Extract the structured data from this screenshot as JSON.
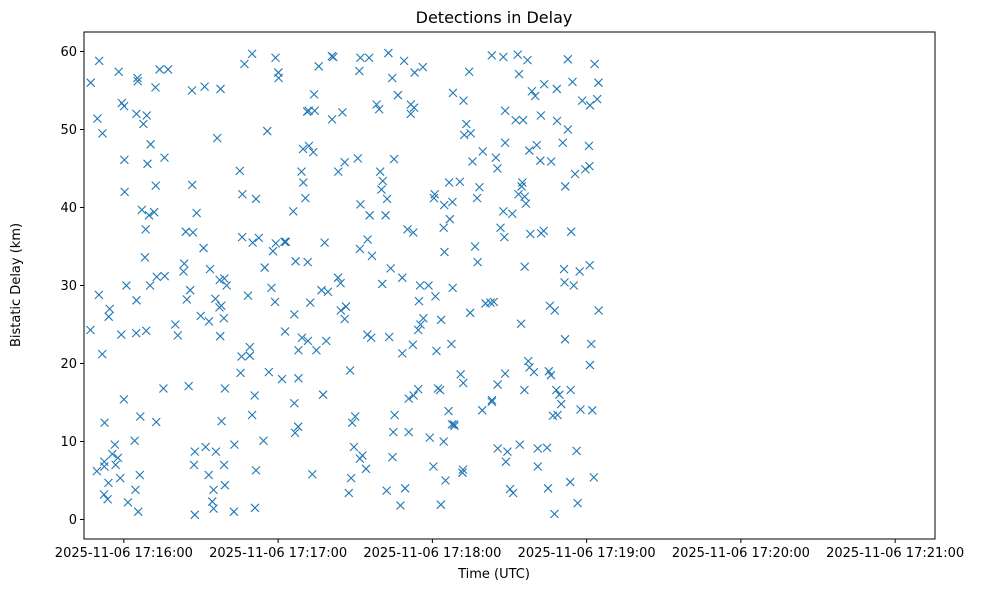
{
  "chart_data": {
    "type": "scatter",
    "title": "Detections in Delay",
    "xlabel": "Time (UTC)",
    "ylabel": "Bistatic Delay (km)",
    "marker": "x",
    "color": "#1f77b4",
    "xlim_seconds": [
      -15.5,
      315.5
    ],
    "ylim": [
      -2.5,
      62.5
    ],
    "xticks": [
      {
        "t": 0,
        "label": "2025-11-06 17:16:00"
      },
      {
        "t": 60,
        "label": "2025-11-06 17:17:00"
      },
      {
        "t": 120,
        "label": "2025-11-06 17:18:00"
      },
      {
        "t": 180,
        "label": "2025-11-06 17:19:00"
      },
      {
        "t": 240,
        "label": "2025-11-06 17:20:00"
      },
      {
        "t": 300,
        "label": "2025-11-06 17:21:00"
      }
    ],
    "yticks": [
      0,
      10,
      20,
      30,
      40,
      50,
      60
    ],
    "x_unit": "seconds after 2025-11-06 17:16:00 UTC",
    "points": [
      [
        -12.9,
        56.0
      ],
      [
        -13.0,
        24.3
      ],
      [
        -10.5,
        6.2
      ],
      [
        -10.3,
        51.4
      ],
      [
        -9.6,
        58.8
      ],
      [
        -9.7,
        28.8
      ],
      [
        -8.4,
        21.2
      ],
      [
        -8.3,
        49.5
      ],
      [
        -7.7,
        3.2
      ],
      [
        -7.6,
        6.8
      ],
      [
        -7.6,
        7.4
      ],
      [
        -7.5,
        12.4
      ],
      [
        -6.3,
        2.6
      ],
      [
        -6.0,
        4.7
      ],
      [
        -5.9,
        26.0
      ],
      [
        -5.5,
        27.0
      ],
      [
        -4.5,
        8.4
      ],
      [
        -3.5,
        9.6
      ],
      [
        -3.2,
        7.0
      ],
      [
        -2.3,
        7.9
      ],
      [
        -2.0,
        57.4
      ],
      [
        -1.4,
        5.3
      ],
      [
        -1.0,
        23.7
      ],
      [
        -0.8,
        53.4
      ],
      [
        0.2,
        46.1
      ],
      [
        0.3,
        42.0
      ],
      [
        0.1,
        53.0
      ],
      [
        0.0,
        15.4
      ],
      [
        1.0,
        30.0
      ],
      [
        1.6,
        2.2
      ],
      [
        4.2,
        10.1
      ],
      [
        4.5,
        3.8
      ],
      [
        4.9,
        52.0
      ],
      [
        4.8,
        23.9
      ],
      [
        4.9,
        28.1
      ],
      [
        5.3,
        56.6
      ],
      [
        5.4,
        56.2
      ],
      [
        5.6,
        1.0
      ],
      [
        6.2,
        5.7
      ],
      [
        6.4,
        13.2
      ],
      [
        7.0,
        39.7
      ],
      [
        7.6,
        50.7
      ],
      [
        8.2,
        33.6
      ],
      [
        8.5,
        37.2
      ],
      [
        8.9,
        51.8
      ],
      [
        8.7,
        24.2
      ],
      [
        9.2,
        45.6
      ],
      [
        9.8,
        39.0
      ],
      [
        10.4,
        48.1
      ],
      [
        10.2,
        30.0
      ],
      [
        11.8,
        39.4
      ],
      [
        12.3,
        55.4
      ],
      [
        12.4,
        42.8
      ],
      [
        12.6,
        12.5
      ],
      [
        12.8,
        31.1
      ],
      [
        13.9,
        57.7
      ],
      [
        15.4,
        16.8
      ],
      [
        15.8,
        46.4
      ],
      [
        15.9,
        31.2
      ],
      [
        17.2,
        57.7
      ],
      [
        20.0,
        25.0
      ],
      [
        21.0,
        23.6
      ],
      [
        23.2,
        31.8
      ],
      [
        23.5,
        32.8
      ],
      [
        24.1,
        36.9
      ],
      [
        24.5,
        28.2
      ],
      [
        25.2,
        17.1
      ],
      [
        25.8,
        29.4
      ],
      [
        26.5,
        55.0
      ],
      [
        26.6,
        42.9
      ],
      [
        26.9,
        36.8
      ],
      [
        27.6,
        8.7
      ],
      [
        27.3,
        7.0
      ],
      [
        27.6,
        0.6
      ],
      [
        28.3,
        39.3
      ],
      [
        29.9,
        26.1
      ],
      [
        31.0,
        34.8
      ],
      [
        31.4,
        55.5
      ],
      [
        31.8,
        9.3
      ],
      [
        33.1,
        25.4
      ],
      [
        33.0,
        5.7
      ],
      [
        33.5,
        32.1
      ],
      [
        34.4,
        2.3
      ],
      [
        34.9,
        3.8
      ],
      [
        34.9,
        1.4
      ],
      [
        35.6,
        28.3
      ],
      [
        35.8,
        8.7
      ],
      [
        36.3,
        48.9
      ],
      [
        37.2,
        27.2
      ],
      [
        37.3,
        30.7
      ],
      [
        37.5,
        23.5
      ],
      [
        37.6,
        55.2
      ],
      [
        37.9,
        27.4
      ],
      [
        38.0,
        12.6
      ],
      [
        39.0,
        7.0
      ],
      [
        39.3,
        4.4
      ],
      [
        39.3,
        16.8
      ],
      [
        38.9,
        25.8
      ],
      [
        39.1,
        30.9
      ],
      [
        40.0,
        30.0
      ],
      [
        42.8,
        1.0
      ],
      [
        43.0,
        9.6
      ],
      [
        45.1,
        44.7
      ],
      [
        45.4,
        18.8
      ],
      [
        45.8,
        20.9
      ],
      [
        46.0,
        36.2
      ],
      [
        46.1,
        41.7
      ],
      [
        46.9,
        58.4
      ],
      [
        48.3,
        28.7
      ],
      [
        49.0,
        21.0
      ],
      [
        49.0,
        22.1
      ],
      [
        49.9,
        59.7
      ],
      [
        49.9,
        13.4
      ],
      [
        50.1,
        35.5
      ],
      [
        50.9,
        15.9
      ],
      [
        51.0,
        1.5
      ],
      [
        51.4,
        6.3
      ],
      [
        51.4,
        41.1
      ],
      [
        52.5,
        36.1
      ],
      [
        54.3,
        10.1
      ],
      [
        54.8,
        32.3
      ],
      [
        55.8,
        49.8
      ],
      [
        56.4,
        18.9
      ],
      [
        57.4,
        29.7
      ],
      [
        58.0,
        34.4
      ],
      [
        58.8,
        27.9
      ],
      [
        59.1,
        35.4
      ],
      [
        59.0,
        59.2
      ],
      [
        60.1,
        57.3
      ],
      [
        60.2,
        56.6
      ],
      [
        61.5,
        18.0
      ],
      [
        62.5,
        35.6
      ],
      [
        63.0,
        35.6
      ],
      [
        62.7,
        24.1
      ],
      [
        65.9,
        39.5
      ],
      [
        66.3,
        26.3
      ],
      [
        66.3,
        14.9
      ],
      [
        66.6,
        11.1
      ],
      [
        66.8,
        33.1
      ],
      [
        67.8,
        11.9
      ],
      [
        67.9,
        18.1
      ],
      [
        67.9,
        21.7
      ],
      [
        69.1,
        44.6
      ],
      [
        69.3,
        23.3
      ],
      [
        69.7,
        47.5
      ],
      [
        69.8,
        43.2
      ],
      [
        70.6,
        41.2
      ],
      [
        71.3,
        52.3
      ],
      [
        71.5,
        33.0
      ],
      [
        71.6,
        22.9
      ],
      [
        71.9,
        52.4
      ],
      [
        72.0,
        47.9
      ],
      [
        72.5,
        27.8
      ],
      [
        73.7,
        47.1
      ],
      [
        73.3,
        5.8
      ],
      [
        74.2,
        52.4
      ],
      [
        74.0,
        54.5
      ],
      [
        74.9,
        21.7
      ],
      [
        75.8,
        58.1
      ],
      [
        76.9,
        29.4
      ],
      [
        77.5,
        16.0
      ],
      [
        78.1,
        35.5
      ],
      [
        78.7,
        22.9
      ],
      [
        79.4,
        29.2
      ],
      [
        81.0,
        51.3
      ],
      [
        80.9,
        59.4
      ],
      [
        81.5,
        59.3
      ],
      [
        83.3,
        31.0
      ],
      [
        83.4,
        44.6
      ],
      [
        84.3,
        30.3
      ],
      [
        84.4,
        26.8
      ],
      [
        85.0,
        52.2
      ],
      [
        85.9,
        45.8
      ],
      [
        85.9,
        25.7
      ],
      [
        86.4,
        27.3
      ],
      [
        87.5,
        3.4
      ],
      [
        88.0,
        19.1
      ],
      [
        88.4,
        5.3
      ],
      [
        88.8,
        12.4
      ],
      [
        89.5,
        9.3
      ],
      [
        90.0,
        13.2
      ],
      [
        91.0,
        46.3
      ],
      [
        91.6,
        57.5
      ],
      [
        92.0,
        59.2
      ],
      [
        91.8,
        7.8
      ],
      [
        92.0,
        40.4
      ],
      [
        91.8,
        34.7
      ],
      [
        92.8,
        8.2
      ],
      [
        94.2,
        6.5
      ],
      [
        94.7,
        23.7
      ],
      [
        94.8,
        35.9
      ],
      [
        95.4,
        59.2
      ],
      [
        95.6,
        39.0
      ],
      [
        96.2,
        23.3
      ],
      [
        96.5,
        33.8
      ],
      [
        98.3,
        53.2
      ],
      [
        99.3,
        52.6
      ],
      [
        99.7,
        44.6
      ],
      [
        100.2,
        42.3
      ],
      [
        100.5,
        30.2
      ],
      [
        100.7,
        43.4
      ],
      [
        101.8,
        39.0
      ],
      [
        102.4,
        41.1
      ],
      [
        102.2,
        3.7
      ],
      [
        102.9,
        59.8
      ],
      [
        103.2,
        23.4
      ],
      [
        103.8,
        32.2
      ],
      [
        104.4,
        56.6
      ],
      [
        104.5,
        8.0
      ],
      [
        104.8,
        11.2
      ],
      [
        105.3,
        13.4
      ],
      [
        105.1,
        46.2
      ],
      [
        106.6,
        54.4
      ],
      [
        107.6,
        1.8
      ],
      [
        108.3,
        31.0
      ],
      [
        108.3,
        21.3
      ],
      [
        109.0,
        58.8
      ],
      [
        109.4,
        4.0
      ],
      [
        110.3,
        37.2
      ],
      [
        110.8,
        11.2
      ],
      [
        110.8,
        15.5
      ],
      [
        111.6,
        52.0
      ],
      [
        111.6,
        53.2
      ],
      [
        112.6,
        36.8
      ],
      [
        112.4,
        22.4
      ],
      [
        112.7,
        15.9
      ],
      [
        112.9,
        52.8
      ],
      [
        113.1,
        57.3
      ],
      [
        114.5,
        16.7
      ],
      [
        114.5,
        24.3
      ],
      [
        114.8,
        28.0
      ],
      [
        115.2,
        30.0
      ],
      [
        115.4,
        25.0
      ],
      [
        116.3,
        58.0
      ],
      [
        116.5,
        25.8
      ],
      [
        118.5,
        30.0
      ],
      [
        119.0,
        10.5
      ],
      [
        120.4,
        6.8
      ],
      [
        120.6,
        41.2
      ],
      [
        120.9,
        41.7
      ],
      [
        121.2,
        28.6
      ],
      [
        121.6,
        21.6
      ],
      [
        122.2,
        16.8
      ],
      [
        123.0,
        16.6
      ],
      [
        123.3,
        1.9
      ],
      [
        123.4,
        25.6
      ],
      [
        124.4,
        37.4
      ],
      [
        124.4,
        10.0
      ],
      [
        124.6,
        40.3
      ],
      [
        124.7,
        34.3
      ],
      [
        125.1,
        5.0
      ],
      [
        126.3,
        13.9
      ],
      [
        126.5,
        43.2
      ],
      [
        126.8,
        38.5
      ],
      [
        127.4,
        22.5
      ],
      [
        127.6,
        12.2
      ],
      [
        127.8,
        40.7
      ],
      [
        127.9,
        29.7
      ],
      [
        128.0,
        54.7
      ],
      [
        128.4,
        12.2
      ],
      [
        128.6,
        12.0
      ],
      [
        130.7,
        43.3
      ],
      [
        131.0,
        18.6
      ],
      [
        131.9,
        6.4
      ],
      [
        132.0,
        17.5
      ],
      [
        131.7,
        6.0
      ],
      [
        132.1,
        53.7
      ],
      [
        132.4,
        49.3
      ],
      [
        133.2,
        50.7
      ],
      [
        134.3,
        57.4
      ],
      [
        134.7,
        26.5
      ],
      [
        134.9,
        49.5
      ],
      [
        135.6,
        45.9
      ],
      [
        136.6,
        35.0
      ],
      [
        137.4,
        41.2
      ],
      [
        137.6,
        33.0
      ],
      [
        138.3,
        42.6
      ],
      [
        139.4,
        14.0
      ],
      [
        139.6,
        47.2
      ],
      [
        140.7,
        27.7
      ],
      [
        142.6,
        27.8
      ],
      [
        143.1,
        15.1
      ],
      [
        143.1,
        59.5
      ],
      [
        143.2,
        15.3
      ],
      [
        143.9,
        27.9
      ],
      [
        144.7,
        46.4
      ],
      [
        145.3,
        45.0
      ],
      [
        145.4,
        9.1
      ],
      [
        145.4,
        17.3
      ],
      [
        146.5,
        37.4
      ],
      [
        147.6,
        39.5
      ],
      [
        147.6,
        59.3
      ],
      [
        148.0,
        36.2
      ],
      [
        148.3,
        18.7
      ],
      [
        148.3,
        48.3
      ],
      [
        148.3,
        52.4
      ],
      [
        148.6,
        7.4
      ],
      [
        149.2,
        8.7
      ],
      [
        150.2,
        3.9
      ],
      [
        151.1,
        39.2
      ],
      [
        151.4,
        3.4
      ],
      [
        152.4,
        51.2
      ],
      [
        153.2,
        59.6
      ],
      [
        153.5,
        41.7
      ],
      [
        153.7,
        57.1
      ],
      [
        154.0,
        9.6
      ],
      [
        154.5,
        25.1
      ],
      [
        154.7,
        42.7
      ],
      [
        155.0,
        43.2
      ],
      [
        155.3,
        51.2
      ],
      [
        155.8,
        16.6
      ],
      [
        155.9,
        41.4
      ],
      [
        155.9,
        32.4
      ],
      [
        156.4,
        40.5
      ],
      [
        157.0,
        58.9
      ],
      [
        157.3,
        20.3
      ],
      [
        157.7,
        47.3
      ],
      [
        157.8,
        19.5
      ],
      [
        158.1,
        36.6
      ],
      [
        158.7,
        54.9
      ],
      [
        159.5,
        18.9
      ],
      [
        160.0,
        54.3
      ],
      [
        160.6,
        48.0
      ],
      [
        161.0,
        6.8
      ],
      [
        161.0,
        9.1
      ],
      [
        162.0,
        46.0
      ],
      [
        162.2,
        51.8
      ],
      [
        162.3,
        36.7
      ],
      [
        163.3,
        37.0
      ],
      [
        163.5,
        55.8
      ],
      [
        164.6,
        9.2
      ],
      [
        165.0,
        4.0
      ],
      [
        165.3,
        19.0
      ],
      [
        165.7,
        27.4
      ],
      [
        166.1,
        18.5
      ],
      [
        166.2,
        45.9
      ],
      [
        166.9,
        13.3
      ],
      [
        167.5,
        0.7
      ],
      [
        167.6,
        26.8
      ],
      [
        168.2,
        16.6
      ],
      [
        168.4,
        55.2
      ],
      [
        168.5,
        51.1
      ],
      [
        168.7,
        13.4
      ],
      [
        169.4,
        16.0
      ],
      [
        170.1,
        14.8
      ],
      [
        170.7,
        48.3
      ],
      [
        171.2,
        32.1
      ],
      [
        171.4,
        30.4
      ],
      [
        171.6,
        23.1
      ],
      [
        171.7,
        42.7
      ],
      [
        172.7,
        50.0
      ],
      [
        172.7,
        59.0
      ],
      [
        173.6,
        4.8
      ],
      [
        173.8,
        16.6
      ],
      [
        174.0,
        36.9
      ],
      [
        174.5,
        56.1
      ],
      [
        175.0,
        30.0
      ],
      [
        175.5,
        44.3
      ],
      [
        176.1,
        8.8
      ],
      [
        176.5,
        2.1
      ],
      [
        177.3,
        31.8
      ],
      [
        177.6,
        14.1
      ],
      [
        178.3,
        53.7
      ],
      [
        179.5,
        44.9
      ],
      [
        180.9,
        47.9
      ],
      [
        181.3,
        53.1
      ],
      [
        181.1,
        45.3
      ],
      [
        181.2,
        32.6
      ],
      [
        181.3,
        19.8
      ],
      [
        181.8,
        22.5
      ],
      [
        182.2,
        14.0
      ],
      [
        182.8,
        5.4
      ],
      [
        183.1,
        58.4
      ],
      [
        184.1,
        53.9
      ],
      [
        184.7,
        26.8
      ],
      [
        184.6,
        56.0
      ]
    ]
  }
}
